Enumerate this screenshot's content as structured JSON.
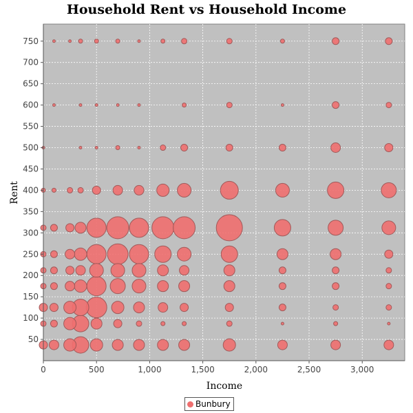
{
  "chart_data": {
    "type": "scatter",
    "title": "Household Rent vs Household Income",
    "xlabel": "Income",
    "ylabel": "Rent",
    "xlim": [
      0,
      3400
    ],
    "ylim": [
      0,
      790
    ],
    "x_ticks": [
      0,
      500,
      1000,
      1500,
      2000,
      2500,
      3000
    ],
    "x_tick_labels": [
      "0",
      "500",
      "1,000",
      "1,500",
      "2,000",
      "2,500",
      "3,000"
    ],
    "y_ticks": [
      50,
      100,
      150,
      200,
      250,
      300,
      350,
      400,
      450,
      500,
      550,
      600,
      650,
      700,
      750
    ],
    "y_tick_labels": [
      "50",
      "100",
      "150",
      "200",
      "250",
      "300",
      "350",
      "400",
      "450",
      "500",
      "550",
      "600",
      "650",
      "700",
      "750"
    ],
    "grid": true,
    "legend_position": "bottom-center",
    "colors": {
      "point_fill": "#ef6f6f",
      "point_stroke": "#a05a5a",
      "plot_bg": "#c0c0c0",
      "grid": "#ffffff"
    },
    "series": [
      {
        "name": "Bunbury",
        "columns": [
          "x",
          "y",
          "size"
        ],
        "points": [
          [
            0,
            37,
            6
          ],
          [
            100,
            37,
            7
          ],
          [
            250,
            37,
            9
          ],
          [
            350,
            37,
            12
          ],
          [
            500,
            37,
            9
          ],
          [
            700,
            37,
            8
          ],
          [
            900,
            37,
            8
          ],
          [
            1125,
            37,
            8
          ],
          [
            1325,
            37,
            8
          ],
          [
            1750,
            37,
            9
          ],
          [
            2250,
            37,
            7
          ],
          [
            2750,
            37,
            7
          ],
          [
            3250,
            37,
            7
          ],
          [
            0,
            87,
            4
          ],
          [
            100,
            87,
            5
          ],
          [
            250,
            87,
            9
          ],
          [
            350,
            87,
            12
          ],
          [
            500,
            87,
            8
          ],
          [
            700,
            87,
            6
          ],
          [
            900,
            87,
            4
          ],
          [
            1125,
            87,
            3
          ],
          [
            1325,
            87,
            3
          ],
          [
            1750,
            87,
            4
          ],
          [
            2250,
            87,
            2
          ],
          [
            2750,
            87,
            3
          ],
          [
            3250,
            87,
            2
          ],
          [
            0,
            125,
            6
          ],
          [
            100,
            125,
            6
          ],
          [
            250,
            125,
            9
          ],
          [
            350,
            125,
            12
          ],
          [
            500,
            125,
            15
          ],
          [
            700,
            125,
            9
          ],
          [
            900,
            125,
            8
          ],
          [
            1125,
            125,
            7
          ],
          [
            1325,
            125,
            6
          ],
          [
            1750,
            125,
            6
          ],
          [
            2250,
            125,
            5
          ],
          [
            2750,
            125,
            4
          ],
          [
            3250,
            125,
            4
          ],
          [
            0,
            175,
            4
          ],
          [
            100,
            175,
            5
          ],
          [
            250,
            175,
            7
          ],
          [
            350,
            175,
            9
          ],
          [
            500,
            175,
            14
          ],
          [
            700,
            175,
            11
          ],
          [
            900,
            175,
            10
          ],
          [
            1125,
            175,
            8
          ],
          [
            1325,
            175,
            8
          ],
          [
            1750,
            175,
            8
          ],
          [
            2250,
            175,
            5
          ],
          [
            2750,
            175,
            5
          ],
          [
            3250,
            175,
            4
          ],
          [
            0,
            212,
            4
          ],
          [
            100,
            212,
            5
          ],
          [
            250,
            212,
            6
          ],
          [
            350,
            212,
            7
          ],
          [
            500,
            212,
            10
          ],
          [
            700,
            212,
            10
          ],
          [
            900,
            212,
            10
          ],
          [
            1125,
            212,
            8
          ],
          [
            1325,
            212,
            7
          ],
          [
            1750,
            212,
            8
          ],
          [
            2250,
            212,
            5
          ],
          [
            2750,
            212,
            5
          ],
          [
            3250,
            212,
            4
          ],
          [
            0,
            250,
            4
          ],
          [
            100,
            250,
            5
          ],
          [
            250,
            250,
            7
          ],
          [
            350,
            250,
            9
          ],
          [
            500,
            250,
            14
          ],
          [
            700,
            250,
            15
          ],
          [
            900,
            250,
            14
          ],
          [
            1125,
            250,
            12
          ],
          [
            1325,
            250,
            10
          ],
          [
            1750,
            250,
            12
          ],
          [
            2250,
            250,
            8
          ],
          [
            2750,
            250,
            8
          ],
          [
            3250,
            250,
            6
          ],
          [
            0,
            312,
            4
          ],
          [
            100,
            312,
            5
          ],
          [
            250,
            312,
            6
          ],
          [
            350,
            312,
            8
          ],
          [
            500,
            312,
            14
          ],
          [
            700,
            312,
            16
          ],
          [
            900,
            312,
            14
          ],
          [
            1125,
            312,
            16
          ],
          [
            1325,
            312,
            16
          ],
          [
            1750,
            312,
            19
          ],
          [
            2250,
            312,
            12
          ],
          [
            2750,
            312,
            11
          ],
          [
            3250,
            312,
            10
          ],
          [
            0,
            400,
            3
          ],
          [
            100,
            400,
            3
          ],
          [
            250,
            400,
            4
          ],
          [
            350,
            400,
            4
          ],
          [
            500,
            400,
            6
          ],
          [
            700,
            400,
            7
          ],
          [
            900,
            400,
            7
          ],
          [
            1125,
            400,
            9
          ],
          [
            1325,
            400,
            10
          ],
          [
            1750,
            400,
            13
          ],
          [
            2250,
            400,
            10
          ],
          [
            2750,
            400,
            12
          ],
          [
            3250,
            400,
            11
          ],
          [
            0,
            500,
            2
          ],
          [
            350,
            500,
            2
          ],
          [
            500,
            500,
            2
          ],
          [
            700,
            500,
            3
          ],
          [
            900,
            500,
            2
          ],
          [
            1125,
            500,
            4
          ],
          [
            1325,
            500,
            5
          ],
          [
            1750,
            500,
            5
          ],
          [
            2250,
            500,
            5
          ],
          [
            2750,
            500,
            7
          ],
          [
            3250,
            500,
            6
          ],
          [
            100,
            600,
            2
          ],
          [
            350,
            600,
            2
          ],
          [
            500,
            600,
            2
          ],
          [
            700,
            600,
            2
          ],
          [
            900,
            600,
            2
          ],
          [
            1325,
            600,
            3
          ],
          [
            1750,
            600,
            4
          ],
          [
            2250,
            600,
            2
          ],
          [
            2750,
            600,
            5
          ],
          [
            3250,
            600,
            4
          ],
          [
            100,
            750,
            2
          ],
          [
            250,
            750,
            2
          ],
          [
            350,
            750,
            3
          ],
          [
            500,
            750,
            3
          ],
          [
            700,
            750,
            3
          ],
          [
            900,
            750,
            2
          ],
          [
            1125,
            750,
            3
          ],
          [
            1325,
            750,
            4
          ],
          [
            1750,
            750,
            4
          ],
          [
            2250,
            750,
            3
          ],
          [
            2750,
            750,
            5
          ],
          [
            3250,
            750,
            5
          ]
        ]
      }
    ]
  }
}
